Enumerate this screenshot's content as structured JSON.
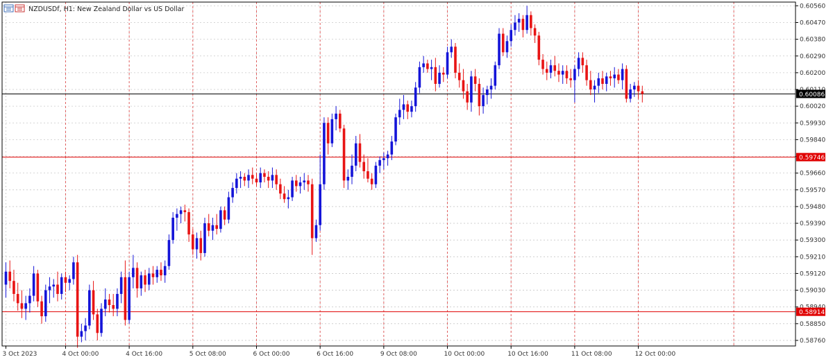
{
  "chart_data": {
    "type": "candlestick",
    "symbol": "NZDUSDf",
    "timeframe": "H1",
    "title": "NZDUSDf, H1:  New Zealand Dollar vs US Dollar",
    "ylim": [
      0.5873,
      0.6058
    ],
    "y_ticks": [
      "0.60560",
      "0.60470",
      "0.60380",
      "0.60290",
      "0.60200",
      "0.60110",
      "0.60020",
      "0.59930",
      "0.59840",
      "0.59750",
      "0.59660",
      "0.59570",
      "0.59480",
      "0.59390",
      "0.59300",
      "0.59210",
      "0.59120",
      "0.59030",
      "0.58940",
      "0.58850",
      "0.58760"
    ],
    "x_labels": [
      {
        "label": "3 Oct 2023",
        "bar": 0
      },
      {
        "label": "4 Oct 00:00",
        "bar": 15
      },
      {
        "label": "4 Oct 16:00",
        "bar": 31
      },
      {
        "label": "5 Oct 08:00",
        "bar": 47
      },
      {
        "label": "6 Oct 00:00",
        "bar": 63
      },
      {
        "label": "6 Oct 16:00",
        "bar": 79
      },
      {
        "label": "9 Oct 08:00",
        "bar": 95
      },
      {
        "label": "10 Oct 00:00",
        "bar": 111
      },
      {
        "label": "10 Oct 16:00",
        "bar": 127
      },
      {
        "label": "11 Oct 08:00",
        "bar": 143
      },
      {
        "label": "12 Oct 00:00",
        "bar": 159
      }
    ],
    "price_lines": [
      {
        "value": 0.60086,
        "label": "0.60086",
        "color": "#000000",
        "kind": "current"
      },
      {
        "value": 0.59746,
        "label": "0.59746",
        "color": "#e00000",
        "kind": "level"
      },
      {
        "value": 0.58914,
        "label": "0.58914",
        "color": "#e00000",
        "kind": "level"
      }
    ],
    "colors": {
      "bull": "#1414d8",
      "bear": "#e81414",
      "grid": "#c8c8c8",
      "period_separator": "#e05050",
      "axis_text": "#333333"
    },
    "grid": true,
    "candles": [
      [
        0.5906,
        0.5918,
        0.5899,
        0.5913
      ],
      [
        0.5913,
        0.5919,
        0.5904,
        0.5908
      ],
      [
        0.5908,
        0.5914,
        0.5897,
        0.5901
      ],
      [
        0.5901,
        0.5907,
        0.5892,
        0.5896
      ],
      [
        0.5896,
        0.5903,
        0.5888,
        0.5893
      ],
      [
        0.5893,
        0.59,
        0.5887,
        0.5896
      ],
      [
        0.5896,
        0.5904,
        0.5891,
        0.59
      ],
      [
        0.59,
        0.5916,
        0.5897,
        0.5912
      ],
      [
        0.5912,
        0.5914,
        0.5894,
        0.5897
      ],
      [
        0.5897,
        0.59,
        0.5885,
        0.5889
      ],
      [
        0.5889,
        0.5906,
        0.5886,
        0.5903
      ],
      [
        0.5903,
        0.591,
        0.5896,
        0.5905
      ],
      [
        0.5905,
        0.5909,
        0.5899,
        0.5906
      ],
      [
        0.5906,
        0.5913,
        0.5897,
        0.5901
      ],
      [
        0.5901,
        0.5912,
        0.5898,
        0.591
      ],
      [
        0.591,
        0.5913,
        0.5902,
        0.5907
      ],
      [
        0.5907,
        0.5911,
        0.5903,
        0.5909
      ],
      [
        0.5909,
        0.5921,
        0.5906,
        0.5918
      ],
      [
        0.5918,
        0.5922,
        0.5872,
        0.5878
      ],
      [
        0.5878,
        0.5885,
        0.5875,
        0.5881
      ],
      [
        0.5881,
        0.5888,
        0.5876,
        0.5884
      ],
      [
        0.5884,
        0.5906,
        0.5882,
        0.5903
      ],
      [
        0.5903,
        0.5908,
        0.5887,
        0.589
      ],
      [
        0.589,
        0.5893,
        0.5876,
        0.588
      ],
      [
        0.588,
        0.5896,
        0.5878,
        0.5893
      ],
      [
        0.5893,
        0.5904,
        0.5889,
        0.5898
      ],
      [
        0.5898,
        0.5901,
        0.5891,
        0.5895
      ],
      [
        0.5895,
        0.5901,
        0.5889,
        0.5893
      ],
      [
        0.5893,
        0.5904,
        0.5889,
        0.5901
      ],
      [
        0.5901,
        0.5913,
        0.5896,
        0.591
      ],
      [
        0.591,
        0.5919,
        0.5884,
        0.5887
      ],
      [
        0.5887,
        0.5913,
        0.5885,
        0.591
      ],
      [
        0.591,
        0.5922,
        0.5904,
        0.5915
      ],
      [
        0.5915,
        0.5918,
        0.5899,
        0.5904
      ],
      [
        0.5904,
        0.5913,
        0.59,
        0.5911
      ],
      [
        0.5911,
        0.5914,
        0.5902,
        0.5906
      ],
      [
        0.5906,
        0.5915,
        0.5903,
        0.5912
      ],
      [
        0.5912,
        0.5916,
        0.5906,
        0.591
      ],
      [
        0.591,
        0.5916,
        0.5907,
        0.5914
      ],
      [
        0.5914,
        0.5918,
        0.5908,
        0.5911
      ],
      [
        0.5911,
        0.5919,
        0.5907,
        0.5916
      ],
      [
        0.5916,
        0.5933,
        0.5914,
        0.593
      ],
      [
        0.593,
        0.5945,
        0.5928,
        0.5942
      ],
      [
        0.5942,
        0.5947,
        0.5935,
        0.5944
      ],
      [
        0.5944,
        0.5948,
        0.5939,
        0.5946
      ],
      [
        0.5946,
        0.5949,
        0.594,
        0.5945
      ],
      [
        0.5945,
        0.5947,
        0.5929,
        0.5933
      ],
      [
        0.5933,
        0.5936,
        0.5922,
        0.5925
      ],
      [
        0.5925,
        0.5934,
        0.592,
        0.5931
      ],
      [
        0.5931,
        0.5935,
        0.5919,
        0.5923
      ],
      [
        0.5923,
        0.5942,
        0.5921,
        0.5939
      ],
      [
        0.5939,
        0.5944,
        0.5932,
        0.5935
      ],
      [
        0.5935,
        0.5942,
        0.593,
        0.5938
      ],
      [
        0.5938,
        0.5944,
        0.5933,
        0.5936
      ],
      [
        0.5936,
        0.5948,
        0.5934,
        0.5946
      ],
      [
        0.5946,
        0.5948,
        0.5938,
        0.5941
      ],
      [
        0.5941,
        0.5956,
        0.5939,
        0.5953
      ],
      [
        0.5953,
        0.5961,
        0.595,
        0.5958
      ],
      [
        0.5958,
        0.5966,
        0.5955,
        0.5963
      ],
      [
        0.5963,
        0.5967,
        0.5958,
        0.5964
      ],
      [
        0.5964,
        0.5966,
        0.5959,
        0.5962
      ],
      [
        0.5962,
        0.5968,
        0.5958,
        0.5965
      ],
      [
        0.5965,
        0.5969,
        0.596,
        0.5963
      ],
      [
        0.5963,
        0.5966,
        0.5959,
        0.5961
      ],
      [
        0.5961,
        0.5969,
        0.5958,
        0.5966
      ],
      [
        0.5966,
        0.5968,
        0.5961,
        0.5964
      ],
      [
        0.5964,
        0.5967,
        0.5958,
        0.5962
      ],
      [
        0.5962,
        0.5969,
        0.5958,
        0.5965
      ],
      [
        0.5965,
        0.5968,
        0.5957,
        0.596
      ],
      [
        0.596,
        0.5963,
        0.5952,
        0.5955
      ],
      [
        0.5955,
        0.5959,
        0.595,
        0.5952
      ],
      [
        0.5952,
        0.5957,
        0.5947,
        0.5953
      ],
      [
        0.5953,
        0.5964,
        0.5951,
        0.5962
      ],
      [
        0.5962,
        0.5965,
        0.5956,
        0.5959
      ],
      [
        0.5959,
        0.5964,
        0.5955,
        0.5961
      ],
      [
        0.5961,
        0.5966,
        0.5957,
        0.5962
      ],
      [
        0.5962,
        0.5965,
        0.5956,
        0.596
      ],
      [
        0.596,
        0.5963,
        0.5922,
        0.5931
      ],
      [
        0.5931,
        0.5941,
        0.5929,
        0.5938
      ],
      [
        0.5938,
        0.5976,
        0.5935,
        0.596
      ],
      [
        0.596,
        0.5996,
        0.5957,
        0.5993
      ],
      [
        0.5993,
        0.5996,
        0.5976,
        0.5982
      ],
      [
        0.5982,
        0.5998,
        0.598,
        0.5995
      ],
      [
        0.5995,
        0.6002,
        0.5989,
        0.5998
      ],
      [
        0.5998,
        0.6,
        0.5988,
        0.599
      ],
      [
        0.599,
        0.5992,
        0.5958,
        0.5962
      ],
      [
        0.5962,
        0.5968,
        0.5957,
        0.5964
      ],
      [
        0.5964,
        0.5976,
        0.596,
        0.597
      ],
      [
        0.597,
        0.5986,
        0.5967,
        0.5982
      ],
      [
        0.5982,
        0.5987,
        0.5969,
        0.5972
      ],
      [
        0.5972,
        0.5976,
        0.5963,
        0.5967
      ],
      [
        0.5967,
        0.5974,
        0.5961,
        0.5963
      ],
      [
        0.5963,
        0.5966,
        0.5957,
        0.596
      ],
      [
        0.596,
        0.5972,
        0.5958,
        0.597
      ],
      [
        0.597,
        0.5975,
        0.5966,
        0.5973
      ],
      [
        0.5973,
        0.5977,
        0.5968,
        0.5974
      ],
      [
        0.5974,
        0.5978,
        0.597,
        0.5976
      ],
      [
        0.5976,
        0.5986,
        0.5973,
        0.5983
      ],
      [
        0.5983,
        0.5998,
        0.5981,
        0.5996
      ],
      [
        0.5996,
        0.6006,
        0.5992,
        0.6
      ],
      [
        0.6,
        0.6008,
        0.5995,
        0.6003
      ],
      [
        0.6003,
        0.6005,
        0.5995,
        0.5999
      ],
      [
        0.5999,
        0.6005,
        0.5996,
        0.6002
      ],
      [
        0.6002,
        0.6015,
        0.5999,
        0.6012
      ],
      [
        0.6012,
        0.6026,
        0.6009,
        0.6023
      ],
      [
        0.6023,
        0.6029,
        0.602,
        0.6025
      ],
      [
        0.6025,
        0.6027,
        0.602,
        0.6022
      ],
      [
        0.6022,
        0.6027,
        0.6016,
        0.6023
      ],
      [
        0.6023,
        0.6028,
        0.601,
        0.6014
      ],
      [
        0.6014,
        0.6024,
        0.6012,
        0.602
      ],
      [
        0.602,
        0.6023,
        0.6015,
        0.6019
      ],
      [
        0.6019,
        0.6034,
        0.6017,
        0.6031
      ],
      [
        0.6031,
        0.6038,
        0.6028,
        0.6034
      ],
      [
        0.6034,
        0.6036,
        0.6017,
        0.602
      ],
      [
        0.602,
        0.6025,
        0.6012,
        0.6016
      ],
      [
        0.6016,
        0.6022,
        0.6006,
        0.601
      ],
      [
        0.601,
        0.6014,
        0.6,
        0.6004
      ],
      [
        0.6004,
        0.6021,
        0.5999,
        0.6018
      ],
      [
        0.6018,
        0.6022,
        0.601,
        0.6014
      ],
      [
        0.6014,
        0.6017,
        0.5997,
        0.6002
      ],
      [
        0.6002,
        0.6012,
        0.5998,
        0.6008
      ],
      [
        0.6008,
        0.6013,
        0.6003,
        0.6011
      ],
      [
        0.6011,
        0.6017,
        0.6006,
        0.6013
      ],
      [
        0.6013,
        0.6026,
        0.6011,
        0.6024
      ],
      [
        0.6024,
        0.6044,
        0.6022,
        0.6041
      ],
      [
        0.6041,
        0.6044,
        0.6029,
        0.6031
      ],
      [
        0.6031,
        0.604,
        0.6028,
        0.6037
      ],
      [
        0.6037,
        0.6046,
        0.6034,
        0.6043
      ],
      [
        0.6043,
        0.6051,
        0.604,
        0.6047
      ],
      [
        0.6047,
        0.6052,
        0.6042,
        0.6049
      ],
      [
        0.6049,
        0.6051,
        0.6039,
        0.6043
      ],
      [
        0.6043,
        0.6056,
        0.6041,
        0.6051
      ],
      [
        0.6051,
        0.6053,
        0.604,
        0.6044
      ],
      [
        0.6044,
        0.6046,
        0.6036,
        0.604
      ],
      [
        0.604,
        0.6042,
        0.6024,
        0.6027
      ],
      [
        0.6027,
        0.603,
        0.6019,
        0.6022
      ],
      [
        0.6022,
        0.6026,
        0.6016,
        0.602
      ],
      [
        0.602,
        0.6027,
        0.6017,
        0.6024
      ],
      [
        0.6024,
        0.6029,
        0.6018,
        0.6021
      ],
      [
        0.6021,
        0.6025,
        0.6015,
        0.6019
      ],
      [
        0.6019,
        0.6024,
        0.6014,
        0.6021
      ],
      [
        0.6021,
        0.6024,
        0.6014,
        0.6017
      ],
      [
        0.6017,
        0.6022,
        0.6012,
        0.6016
      ],
      [
        0.6016,
        0.6024,
        0.6004,
        0.6022
      ],
      [
        0.6022,
        0.6031,
        0.6018,
        0.6028
      ],
      [
        0.6028,
        0.6031,
        0.602,
        0.6024
      ],
      [
        0.6024,
        0.6027,
        0.6013,
        0.6016
      ],
      [
        0.6016,
        0.6021,
        0.6008,
        0.6011
      ],
      [
        0.6011,
        0.6016,
        0.6004,
        0.6013
      ],
      [
        0.6013,
        0.602,
        0.6009,
        0.6017
      ],
      [
        0.6017,
        0.6021,
        0.6011,
        0.6014
      ],
      [
        0.6014,
        0.602,
        0.601,
        0.6018
      ],
      [
        0.6018,
        0.6021,
        0.6013,
        0.6017
      ],
      [
        0.6017,
        0.6023,
        0.6012,
        0.6019
      ],
      [
        0.6019,
        0.6022,
        0.6014,
        0.6016
      ],
      [
        0.6016,
        0.6025,
        0.6011,
        0.6022
      ],
      [
        0.6022,
        0.6024,
        0.6004,
        0.6006
      ],
      [
        0.6006,
        0.6014,
        0.6004,
        0.6011
      ],
      [
        0.6011,
        0.6015,
        0.6007,
        0.6013
      ],
      [
        0.6013,
        0.6016,
        0.6006,
        0.601
      ],
      [
        0.601,
        0.6013,
        0.6004,
        0.60086
      ]
    ]
  }
}
